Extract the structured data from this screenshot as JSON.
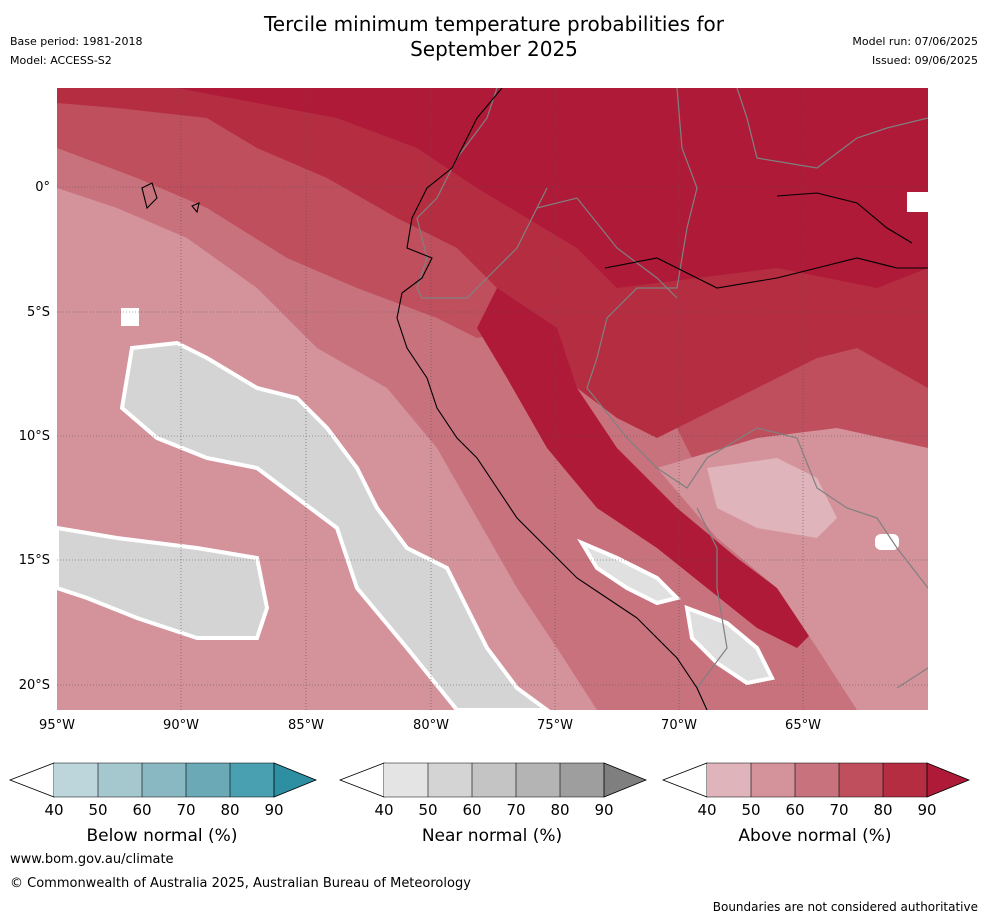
{
  "header": {
    "title_line1": "Tercile minimum temperature probabilities for",
    "title_line2": "September 2025",
    "base_period": "Base period: 1981-2018",
    "model": "Model: ACCESS-S2",
    "model_run": "Model run: 07/06/2025",
    "issued": "Issued: 09/06/2025"
  },
  "map": {
    "lat_labels": [
      "0°",
      "5°S",
      "10°S",
      "15°S",
      "20°S"
    ],
    "lon_labels": [
      "95°W",
      "90°W",
      "85°W",
      "80°W",
      "75°W",
      "70°W",
      "65°W"
    ]
  },
  "legend": {
    "below": {
      "title": "Below normal (%)",
      "ticks": [
        "40",
        "50",
        "60",
        "70",
        "80",
        "90"
      ],
      "colors": [
        "#ffffff",
        "#bcd6dc",
        "#a5c8cf",
        "#89b8c3",
        "#6aa9b5",
        "#48a0b0",
        "#2e8fa3"
      ]
    },
    "near": {
      "title": "Near normal (%)",
      "ticks": [
        "40",
        "50",
        "60",
        "70",
        "80",
        "90"
      ],
      "colors": [
        "#ffffff",
        "#e4e4e4",
        "#d4d4d4",
        "#c4c4c4",
        "#b4b4b4",
        "#9e9e9e",
        "#7f7f7f"
      ]
    },
    "above": {
      "title": "Above normal (%)",
      "ticks": [
        "40",
        "50",
        "60",
        "70",
        "80",
        "90"
      ],
      "colors": [
        "#ffffff",
        "#dfb4ba",
        "#d4929b",
        "#c8727e",
        "#bf4f5d",
        "#b52d41",
        "#ae1a38"
      ]
    }
  },
  "footer": {
    "website": "www.bom.gov.au/climate",
    "copyright": "© Commonwealth of Australia 2025, Australian Bureau of Meteorology",
    "disclaimer": "Boundaries are not considered authoritative"
  }
}
